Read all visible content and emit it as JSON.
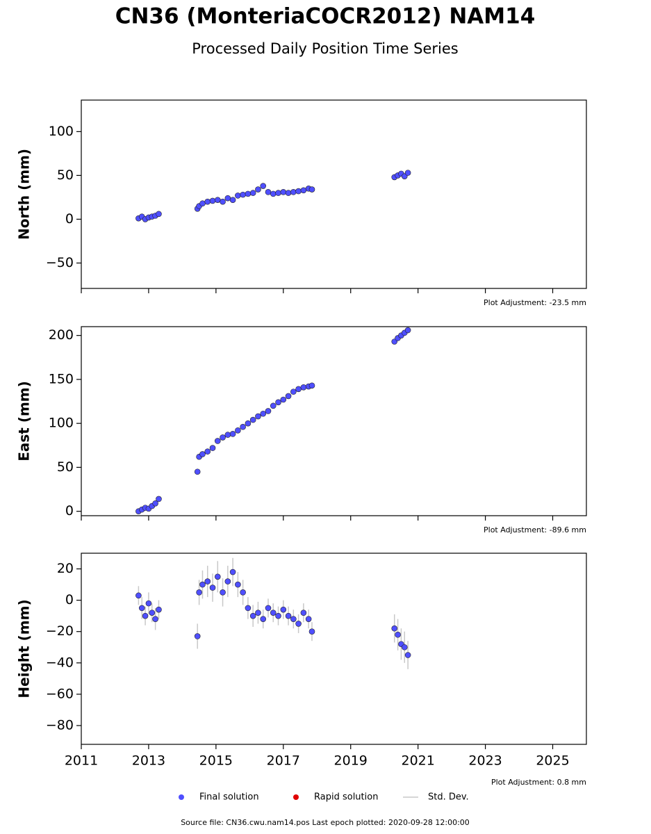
{
  "title": "CN36 (MonteriaCOCR2012) NAM14",
  "subtitle": "Processed Daily Position Time Series",
  "legend": [
    {
      "name": "Final solution",
      "color": "#4f4fff"
    },
    {
      "name": "Rapid solution",
      "color": "#e00000"
    },
    {
      "name": "Std. Dev.",
      "color": "#c8c8c8"
    }
  ],
  "source": "Source file: CN36.cwu.nam14.pos  Last epoch plotted: 2020-09-28 12:00:00",
  "chart_data": [
    {
      "type": "scatter",
      "ylabel": "North (mm)",
      "annotation": "Plot Adjustment: -23.5 mm",
      "color": "#4f4fff",
      "xlim": [
        2011,
        2026
      ],
      "xticks": [
        2011,
        2013,
        2015,
        2017,
        2019,
        2021,
        2023,
        2025
      ],
      "ylim": [
        -79,
        136
      ],
      "yticks": [
        {
          "value": -50,
          "label": "−50"
        },
        0,
        50,
        100
      ],
      "x": [
        2012.7,
        2012.8,
        2012.9,
        2013.0,
        2013.1,
        2013.2,
        2013.3,
        2014.45,
        2014.5,
        2014.6,
        2014.75,
        2014.9,
        2015.05,
        2015.2,
        2015.35,
        2015.5,
        2015.65,
        2015.8,
        2015.95,
        2016.1,
        2016.25,
        2016.4,
        2016.55,
        2016.7,
        2016.85,
        2017.0,
        2017.15,
        2017.3,
        2017.45,
        2017.6,
        2017.75,
        2017.85,
        2020.3,
        2020.4,
        2020.5,
        2020.6,
        2020.7
      ],
      "values": [
        1,
        3,
        0,
        2,
        3,
        4,
        6,
        12,
        15,
        18,
        20,
        21,
        22,
        20,
        24,
        22,
        27,
        28,
        29,
        30,
        34,
        38,
        31,
        29,
        30,
        31,
        30,
        31,
        32,
        33,
        35,
        34,
        48,
        50,
        52,
        49,
        53
      ]
    },
    {
      "type": "scatter",
      "ylabel": "East (mm)",
      "annotation": "Plot Adjustment: -89.6 mm",
      "color": "#4f4fff",
      "xlim": [
        2011,
        2026
      ],
      "xticks": [
        2011,
        2013,
        2015,
        2017,
        2019,
        2021,
        2023,
        2025
      ],
      "ylim": [
        -5,
        210
      ],
      "yticks": [
        0,
        50,
        100,
        150,
        200
      ],
      "x": [
        2012.7,
        2012.8,
        2012.9,
        2013.0,
        2013.1,
        2013.2,
        2013.3,
        2014.45,
        2014.5,
        2014.6,
        2014.75,
        2014.9,
        2015.05,
        2015.2,
        2015.35,
        2015.5,
        2015.65,
        2015.8,
        2015.95,
        2016.1,
        2016.25,
        2016.4,
        2016.55,
        2016.7,
        2016.85,
        2017.0,
        2017.15,
        2017.3,
        2017.45,
        2017.6,
        2017.75,
        2017.85,
        2020.3,
        2020.4,
        2020.5,
        2020.6,
        2020.7
      ],
      "values": [
        0,
        2,
        4,
        3,
        6,
        9,
        14,
        45,
        62,
        65,
        68,
        72,
        80,
        84,
        87,
        88,
        92,
        96,
        100,
        104,
        108,
        111,
        114,
        120,
        124,
        127,
        131,
        136,
        139,
        141,
        142,
        143,
        193,
        197,
        200,
        203,
        206
      ]
    },
    {
      "type": "scatter",
      "ylabel": "Height (mm)",
      "annotation": "Plot Adjustment: 0.8 mm",
      "color": "#4f4fff",
      "error_color": "#c8c8c8",
      "xlim": [
        2011,
        2026
      ],
      "xticks": [
        2011,
        2013,
        2015,
        2017,
        2019,
        2021,
        2023,
        2025
      ],
      "ylim": [
        -92,
        30
      ],
      "yticks": [
        {
          "value": -80,
          "label": "−80"
        },
        {
          "value": -60,
          "label": "−60"
        },
        {
          "value": -40,
          "label": "−40"
        },
        {
          "value": -20,
          "label": "−20"
        },
        0,
        20
      ],
      "x": [
        2012.7,
        2012.8,
        2012.9,
        2013.0,
        2013.1,
        2013.2,
        2013.3,
        2014.45,
        2014.5,
        2014.6,
        2014.75,
        2014.9,
        2015.05,
        2015.2,
        2015.35,
        2015.5,
        2015.65,
        2015.8,
        2015.95,
        2016.1,
        2016.25,
        2016.4,
        2016.55,
        2016.7,
        2016.85,
        2017.0,
        2017.15,
        2017.3,
        2017.45,
        2017.6,
        2017.75,
        2017.85,
        2020.3,
        2020.4,
        2020.5,
        2020.6,
        2020.7
      ],
      "values": [
        3,
        -5,
        -10,
        -2,
        -8,
        -12,
        -6,
        -23,
        5,
        10,
        12,
        8,
        15,
        5,
        12,
        18,
        10,
        5,
        -5,
        -10,
        -8,
        -12,
        -5,
        -8,
        -10,
        -6,
        -10,
        -12,
        -15,
        -8,
        -12,
        -20,
        -18,
        -22,
        -28,
        -30,
        -35
      ],
      "errors": [
        6,
        7,
        6,
        7,
        6,
        7,
        6,
        8,
        8,
        9,
        10,
        9,
        10,
        9,
        10,
        9,
        8,
        8,
        7,
        7,
        7,
        6,
        6,
        6,
        6,
        6,
        6,
        6,
        6,
        6,
        6,
        6,
        9,
        10,
        10,
        10,
        9
      ]
    }
  ]
}
